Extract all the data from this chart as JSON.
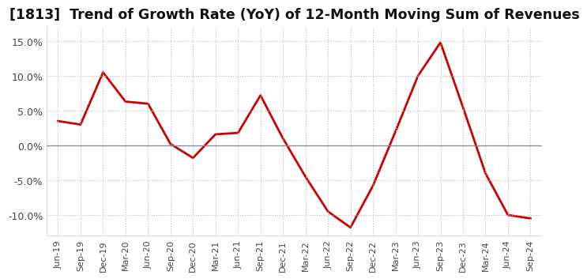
{
  "title": "[1813]  Trend of Growth Rate (YoY) of 12-Month Moving Sum of Revenues",
  "title_fontsize": 12.5,
  "line_color": "#cc0000",
  "line_width": 2.0,
  "background_color": "#ffffff",
  "grid_color": "#aaaaaa",
  "ylim": [
    -0.13,
    0.17
  ],
  "yticks": [
    -0.1,
    -0.05,
    0.0,
    0.05,
    0.1,
    0.15
  ],
  "x_labels": [
    "Jun-19",
    "Sep-19",
    "Dec-19",
    "Mar-20",
    "Jun-20",
    "Sep-20",
    "Dec-20",
    "Mar-21",
    "Jun-21",
    "Sep-21",
    "Dec-21",
    "Mar-22",
    "Jun-22",
    "Sep-22",
    "Dec-22",
    "Mar-23",
    "Jun-23",
    "Sep-23",
    "Dec-23",
    "Mar-24",
    "Jun-24",
    "Sep-24"
  ],
  "y_values": [
    0.035,
    0.03,
    0.105,
    0.063,
    0.06,
    0.002,
    -0.018,
    0.016,
    0.018,
    0.072,
    0.01,
    -0.045,
    -0.095,
    -0.118,
    -0.058,
    0.02,
    0.1,
    0.148,
    0.055,
    -0.04,
    -0.1,
    -0.105
  ]
}
